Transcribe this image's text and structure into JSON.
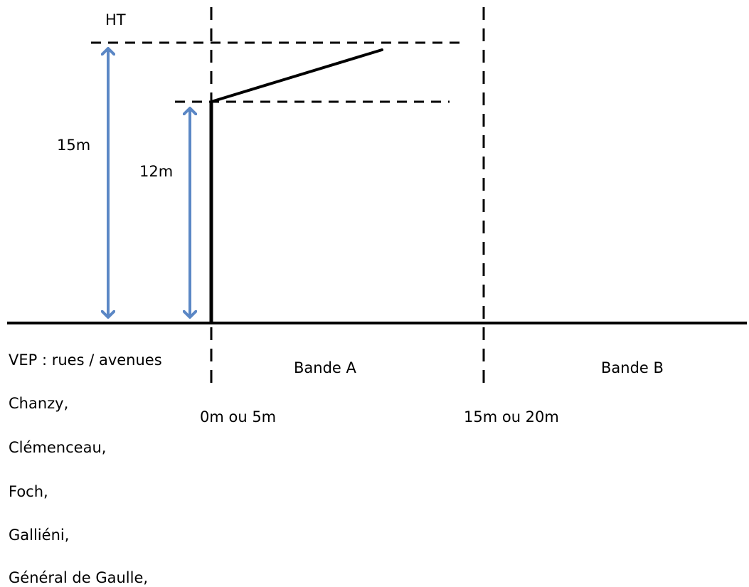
{
  "labels": {
    "ht": "HT",
    "height_15": "15m",
    "height_12": "12m",
    "band_a": "Bande A",
    "band_b": "Bande B",
    "dist_start": "0m ou 5m",
    "dist_end": "15m ou 20m"
  },
  "vep": {
    "title": "VEP : rues / avenues",
    "streets": [
      "Chanzy,",
      "Clémenceau,",
      "Foch,",
      "Galliéni,",
      "Général de Gaulle,"
    ]
  },
  "colors": {
    "line": "#000000",
    "arrow": "#5b87c5"
  }
}
